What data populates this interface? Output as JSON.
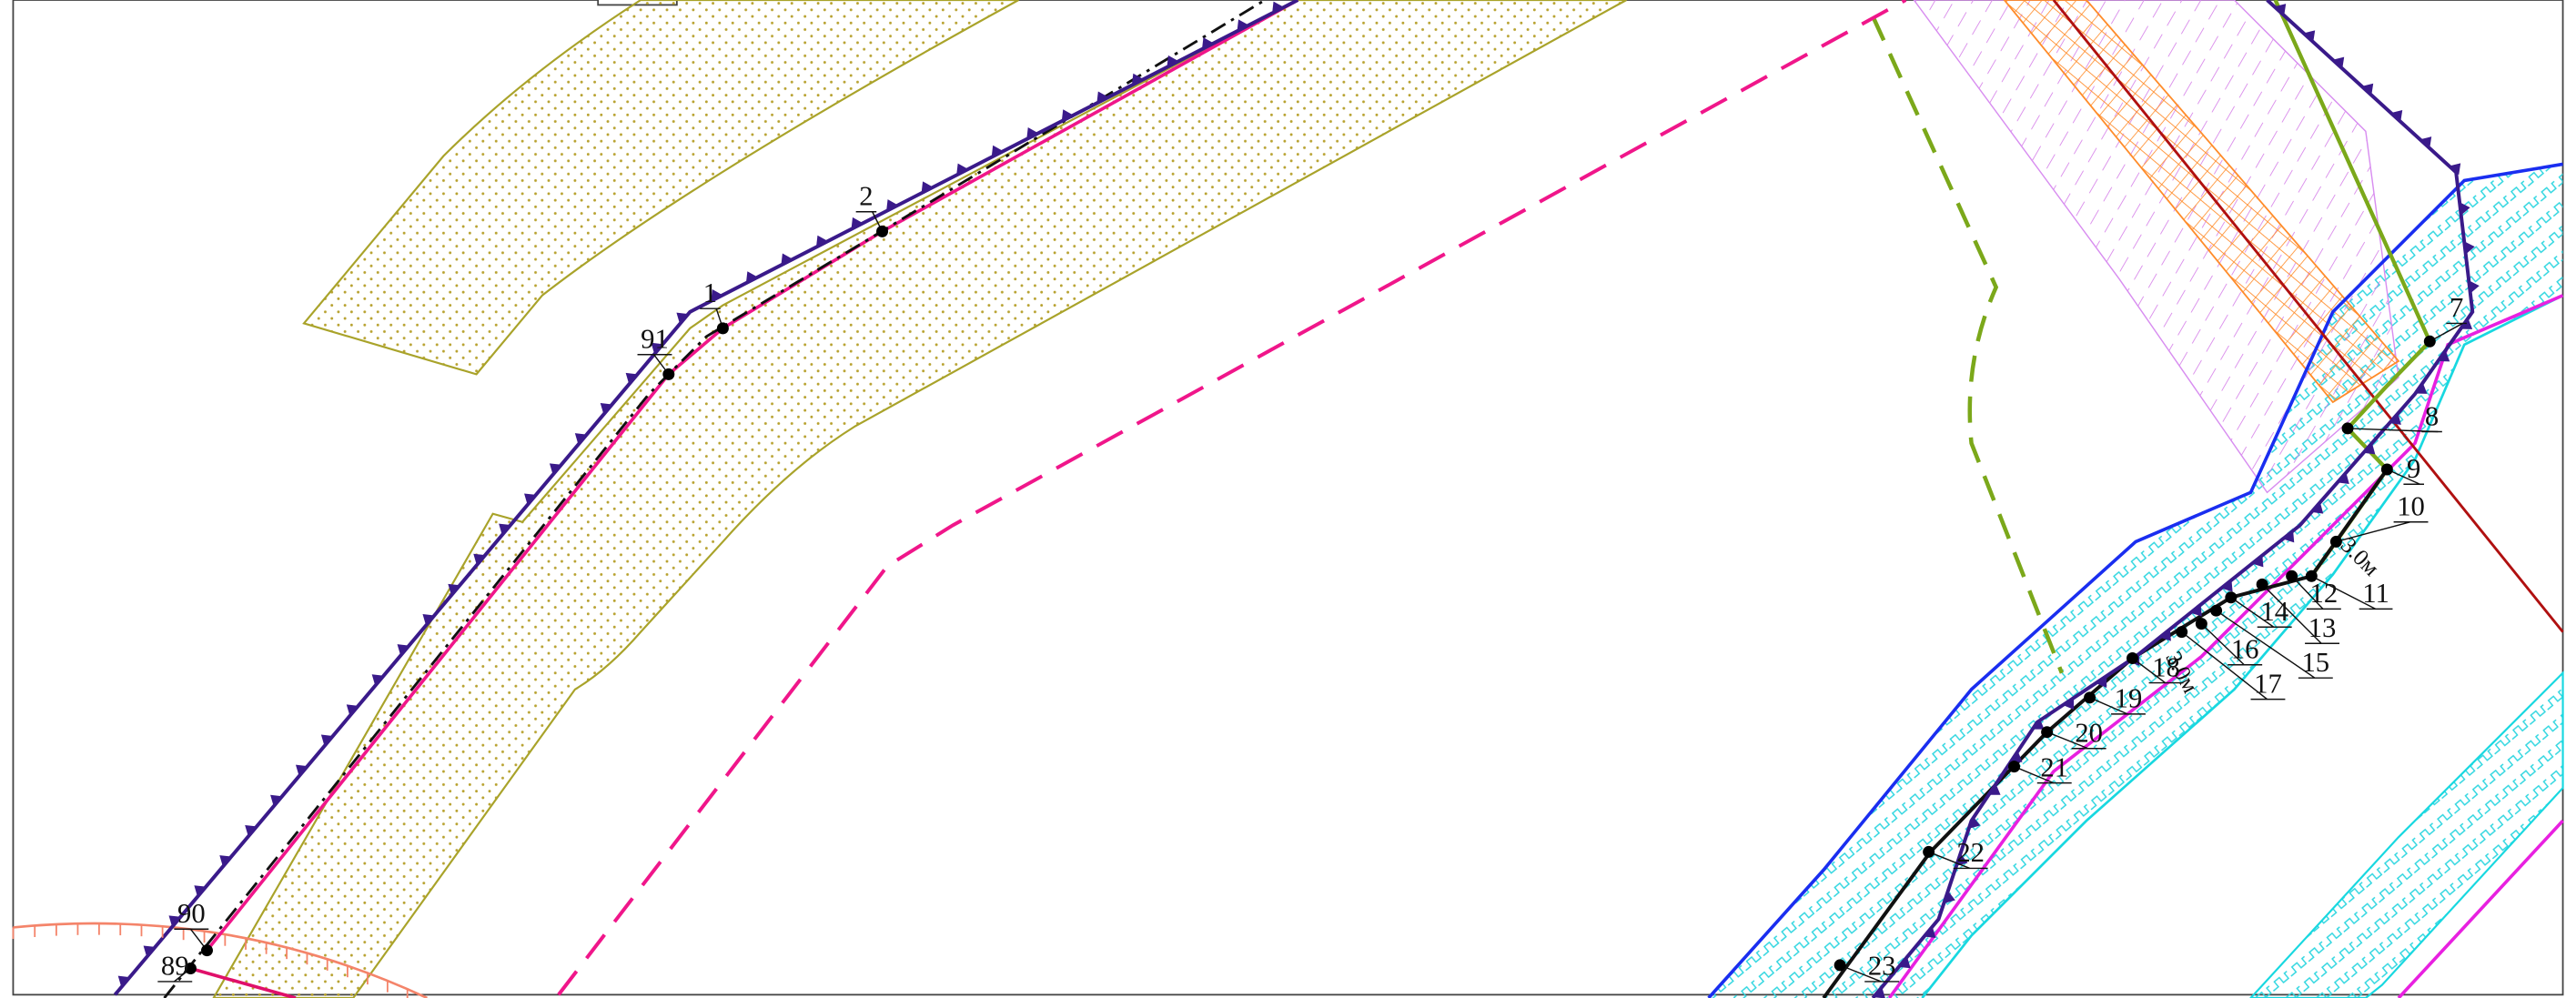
{
  "points": [
    {
      "label": "1"
    },
    {
      "label": "2"
    },
    {
      "label": "91"
    },
    {
      "label": "7"
    },
    {
      "label": "8"
    },
    {
      "label": "9"
    },
    {
      "label": "10"
    },
    {
      "label": "11"
    },
    {
      "label": "12"
    },
    {
      "label": "13"
    },
    {
      "label": "14"
    },
    {
      "label": "15"
    },
    {
      "label": "16"
    },
    {
      "label": "17"
    },
    {
      "label": "18"
    },
    {
      "label": "19"
    },
    {
      "label": "20"
    },
    {
      "label": "21"
    },
    {
      "label": "22"
    },
    {
      "label": "23"
    },
    {
      "label": "90"
    },
    {
      "label": "89"
    }
  ],
  "distance_labels": [
    "3.0м",
    "3.0м"
  ]
}
